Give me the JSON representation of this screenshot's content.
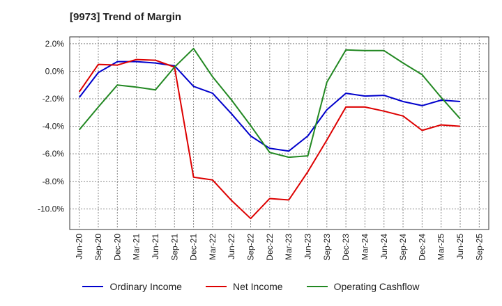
{
  "chart_data": {
    "type": "line",
    "title": "[9973]  Trend of Margin",
    "categories": [
      "Jun-20",
      "Sep-20",
      "Dec-20",
      "Mar-21",
      "Jun-21",
      "Sep-21",
      "Dec-21",
      "Mar-22",
      "Jun-22",
      "Sep-22",
      "Dec-22",
      "Mar-23",
      "Jun-23",
      "Sep-23",
      "Dec-23",
      "Mar-24",
      "Jun-24",
      "Sep-24",
      "Dec-24",
      "Mar-25",
      "Jun-25",
      "Sep-25"
    ],
    "y_ticks": [
      "2.0%",
      "0.0%",
      "-2.0%",
      "-4.0%",
      "-6.0%",
      "-8.0%",
      "-10.0%"
    ],
    "ylim": [
      -11.5,
      2.5
    ],
    "grid": true,
    "legend_position": "bottom",
    "series": [
      {
        "name": "Ordinary Income",
        "color": "#0000cc",
        "values": [
          -1.9,
          -0.1,
          0.7,
          0.7,
          0.6,
          0.4,
          -1.1,
          -1.6,
          -3.1,
          -4.7,
          -5.6,
          -5.8,
          -4.7,
          -2.8,
          -1.6,
          -1.8,
          -1.75,
          -2.2,
          -2.5,
          -2.1,
          -2.2,
          null
        ]
      },
      {
        "name": "Net Income",
        "color": "#dd0000",
        "values": [
          -1.5,
          0.5,
          0.45,
          0.85,
          0.8,
          0.3,
          -7.7,
          -7.9,
          -9.4,
          -10.7,
          -9.25,
          -9.35,
          -7.3,
          -5.0,
          -2.6,
          -2.6,
          -2.9,
          -3.25,
          -4.3,
          -3.9,
          -4.0,
          null
        ]
      },
      {
        "name": "Operating Cashflow",
        "color": "#228822",
        "values": [
          -4.25,
          -2.6,
          -1.0,
          -1.15,
          -1.35,
          0.3,
          1.65,
          -0.4,
          -2.1,
          -3.95,
          -5.9,
          -6.25,
          -6.15,
          -0.8,
          1.55,
          1.5,
          1.5,
          0.6,
          -0.25,
          -1.9,
          -3.45,
          null
        ]
      }
    ]
  }
}
